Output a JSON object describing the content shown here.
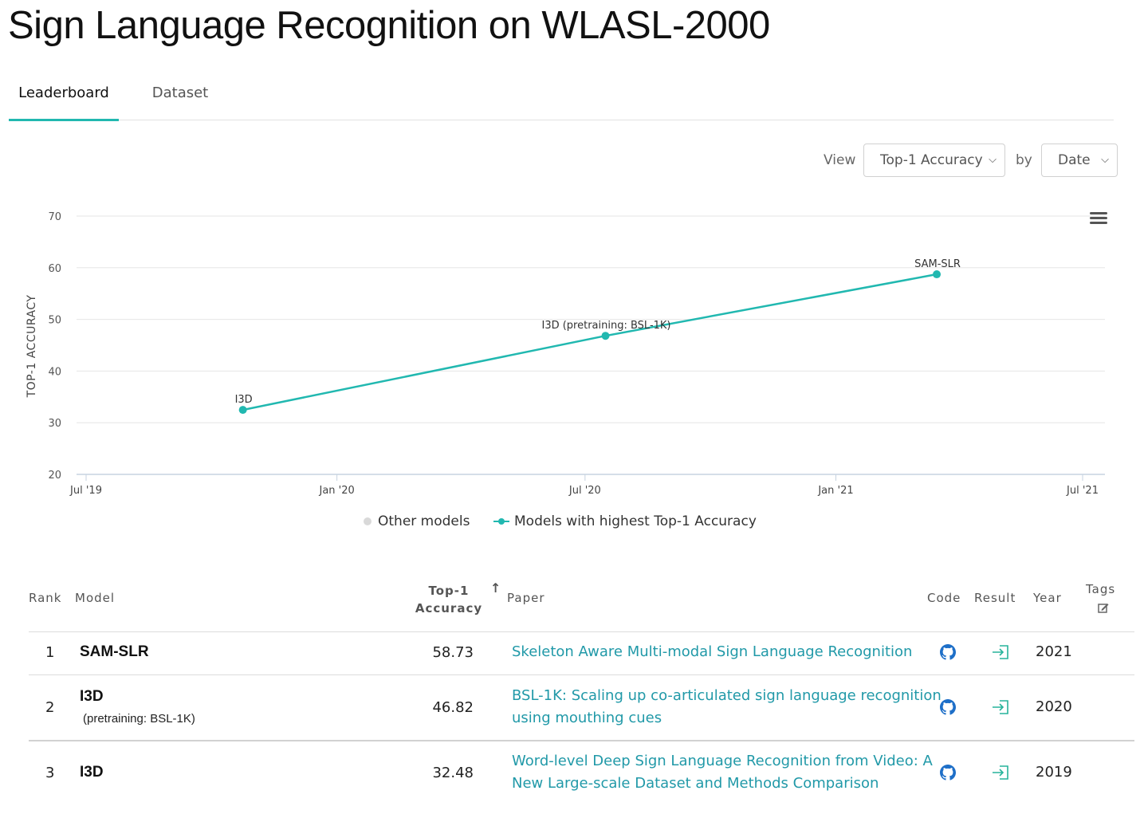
{
  "page": {
    "title": "Sign Language Recognition on WLASL-2000"
  },
  "tabs": [
    {
      "label": "Leaderboard",
      "active": true
    },
    {
      "label": "Dataset",
      "active": false
    }
  ],
  "controls": {
    "view_label": "View",
    "metric_selected": "Top-1 Accuracy",
    "by_label": "by",
    "axis_selected": "Date"
  },
  "colors": {
    "accent": "#21b8b0",
    "link": "#2199a8",
    "other_models": "#d9d9d9"
  },
  "chart_data": {
    "type": "line",
    "ylabel": "TOP-1 ACCURACY",
    "xlabel": "",
    "ylim": [
      20,
      70
    ],
    "yticks": [
      20,
      30,
      40,
      50,
      60,
      70
    ],
    "xlim": [
      "2019-07-01",
      "2021-07-01"
    ],
    "xticks": [
      {
        "label": "Jul '19",
        "date": "2019-07-01"
      },
      {
        "label": "Jan '20",
        "date": "2020-01-01"
      },
      {
        "label": "Jul '20",
        "date": "2020-07-01"
      },
      {
        "label": "Jan '21",
        "date": "2021-01-01"
      },
      {
        "label": "Jul '21",
        "date": "2021-07-01"
      }
    ],
    "grid": true,
    "legend_position": "bottom-center",
    "series": [
      {
        "name": "Models with highest Top-1 Accuracy",
        "color": "#21b8b0",
        "points": [
          {
            "label": "I3D",
            "date": "2019-10-24",
            "value": 32.48
          },
          {
            "label": "I3D (pretraining: BSL-1K)",
            "date": "2020-07-16",
            "value": 46.82
          },
          {
            "label": "SAM-SLR",
            "date": "2021-03-16",
            "value": 58.73
          }
        ]
      },
      {
        "name": "Other models",
        "color": "#d9d9d9",
        "points": []
      }
    ]
  },
  "legend": {
    "other": "Other models",
    "best": "Models with highest Top-1 Accuracy"
  },
  "table": {
    "headers": {
      "rank": "Rank",
      "model": "Model",
      "metric_line1": "Top-1",
      "metric_line2": "Accuracy",
      "sort_icon": "↑",
      "paper": "Paper",
      "code": "Code",
      "result": "Result",
      "year": "Year",
      "tags": "Tags"
    },
    "rows": [
      {
        "rank": "1",
        "model": "SAM-SLR",
        "model_extra": "",
        "metric": "58.73",
        "paper": "Skeleton Aware Multi-modal Sign Language Recognition",
        "paper_line2": "",
        "year": "2021"
      },
      {
        "rank": "2",
        "model": "I3D",
        "model_extra": "(pretraining: BSL-1K)",
        "metric": "46.82",
        "paper": "BSL-1K: Scaling up co-articulated sign language recognition",
        "paper_line2": "using mouthing cues",
        "year": "2020"
      },
      {
        "rank": "3",
        "model": "I3D",
        "model_extra": "",
        "metric": "32.48",
        "paper": "Word-level Deep Sign Language Recognition from Video: A",
        "paper_line2": "New Large-scale Dataset and Methods Comparison",
        "year": "2019"
      }
    ]
  }
}
